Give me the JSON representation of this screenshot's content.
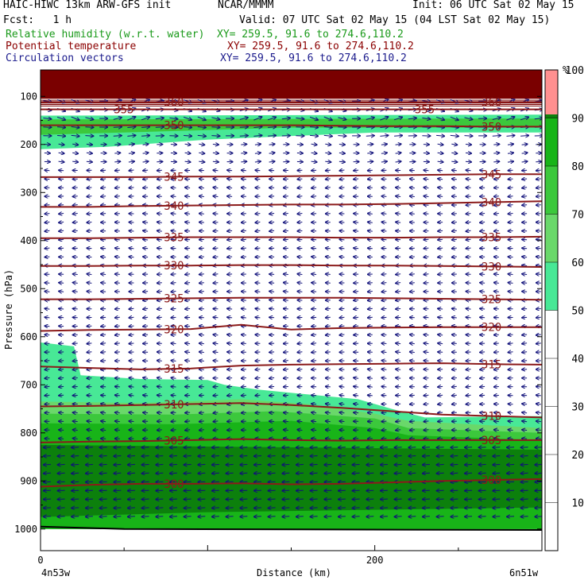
{
  "header": {
    "line1_left": "HAIC-HIWC 13km ARW-GFS init",
    "line1_mid": "NCAR/MMMM",
    "line1_right": "Init: 06 UTC Sat 02 May 15",
    "fcst": "Fcst:   1 h",
    "valid": "Valid: 07 UTC Sat 02 May 15 (04 LST Sat 02 May 15)",
    "rh_label": "Relative humidity (w.r.t. water)",
    "rh_xy": "XY= 259.5, 91.6 to 274.6,110.2",
    "theta_label": "Potential temperature",
    "theta_xy": "XY= 259.5, 91.6 to 274.6,110.2",
    "vec_label": "Circulation vectors",
    "vec_xy": "XY= 259.5, 91.6 to 274.6,110.2"
  },
  "colors": {
    "rh_text": "#1a9a1a",
    "theta_text": "#8b0000",
    "vec_text": "#1a1a8c",
    "theta_line": "#8b1a1a",
    "vector": "#10107a",
    "rh50": "#48e896",
    "rh60": "#6ad86a",
    "rh70": "#3cc83c",
    "rh80": "#18b418",
    "rh90": "#0c800c",
    "rh100": "#ff9090",
    "top_band": "#7a0000"
  },
  "chart_data": {
    "type": "cross-section",
    "xlabel": "Distance (km)",
    "ylabel": "Pressure (hPa)",
    "x_ticks": [
      "0",
      "200"
    ],
    "x_range": [
      0,
      300
    ],
    "y_ticks": [
      100,
      200,
      300,
      400,
      500,
      600,
      700,
      800,
      900,
      1000
    ],
    "y_range": [
      1045,
      45
    ],
    "endpoint_left": "4n53w",
    "endpoint_right": "6n51w",
    "colorbar": {
      "unit": "%",
      "labels": [
        "10",
        "20",
        "30",
        "40",
        "50",
        "60",
        "70",
        "80",
        "90",
        "100"
      ]
    },
    "isentropes": [
      {
        "theta": "300",
        "label_positions": [
          80,
          270
        ],
        "pressure": [
          912,
          908,
          906,
          906,
          905,
          907,
          906,
          903,
          900,
          898,
          896
        ]
      },
      {
        "theta": "305",
        "label_positions": [
          80,
          270
        ],
        "pressure": [
          820,
          818,
          817,
          815,
          813,
          815,
          816,
          815,
          815,
          815,
          815
        ]
      },
      {
        "theta": "310",
        "label_positions": [
          80,
          270
        ],
        "pressure": [
          745,
          744,
          742,
          740,
          738,
          742,
          748,
          755,
          762,
          765,
          768
        ]
      },
      {
        "theta": "315",
        "label_positions": [
          80,
          270
        ],
        "pressure": [
          662,
          665,
          668,
          666,
          660,
          658,
          657,
          656,
          655,
          657,
          658
        ]
      },
      {
        "theta": "320",
        "label_positions": [
          80,
          270
        ],
        "pressure": [
          588,
          586,
          585,
          584,
          575,
          585,
          582,
          581,
          580,
          580,
          580
        ]
      },
      {
        "theta": "325",
        "label_positions": [
          80,
          270
        ],
        "pressure": [
          522,
          522,
          521,
          520,
          519,
          519,
          519,
          520,
          521,
          522,
          523
        ]
      },
      {
        "theta": "330",
        "label_positions": [
          80,
          270
        ],
        "pressure": [
          453,
          453,
          452,
          452,
          451,
          451,
          452,
          452,
          453,
          454,
          455
        ]
      },
      {
        "theta": "335",
        "label_positions": [
          80,
          270
        ],
        "pressure": [
          395,
          395,
          394,
          393,
          393,
          393,
          394,
          394,
          393,
          393,
          392
        ]
      },
      {
        "theta": "340",
        "label_positions": [
          80,
          270
        ],
        "pressure": [
          330,
          330,
          328,
          327,
          326,
          325,
          325,
          324,
          322,
          320,
          318
        ]
      },
      {
        "theta": "345",
        "label_positions": [
          80,
          270
        ],
        "pressure": [
          268,
          268,
          268,
          267,
          267,
          266,
          265,
          264,
          263,
          262,
          262
        ]
      },
      {
        "theta": "350",
        "label_positions": [
          80,
          270
        ],
        "pressure": [
          160,
          160,
          160,
          160,
          160,
          160,
          161,
          162,
          162,
          163,
          163
        ]
      },
      {
        "theta": "355",
        "label_positions": [
          50,
          230
        ],
        "pressure": [
          127,
          127,
          127,
          127,
          127,
          127,
          127,
          127,
          127,
          127,
          127
        ]
      },
      {
        "theta": "360",
        "label_positions": [
          80,
          270
        ],
        "pressure": [
          112,
          112,
          112,
          112,
          112,
          112,
          112,
          112,
          112,
          112,
          112
        ]
      }
    ],
    "rh_regions": [
      {
        "level": 50,
        "points": [
          [
            0,
            612
          ],
          [
            20,
            620
          ],
          [
            24,
            680
          ],
          [
            60,
            688
          ],
          [
            100,
            690
          ],
          [
            110,
            700
          ],
          [
            130,
            710
          ],
          [
            190,
            730
          ],
          [
            210,
            750
          ],
          [
            230,
            768
          ],
          [
            300,
            765
          ],
          [
            300,
            1000
          ],
          [
            0,
            1000
          ]
        ]
      },
      {
        "level": 60,
        "points": [
          [
            0,
            735
          ],
          [
            60,
            738
          ],
          [
            120,
            730
          ],
          [
            160,
            740
          ],
          [
            200,
            760
          ],
          [
            220,
            775
          ],
          [
            300,
            790
          ],
          [
            300,
            1000
          ],
          [
            0,
            1000
          ]
        ]
      },
      {
        "level": 70,
        "points": [
          [
            0,
            760
          ],
          [
            80,
            762
          ],
          [
            140,
            755
          ],
          [
            200,
            770
          ],
          [
            220,
            790
          ],
          [
            300,
            800
          ],
          [
            300,
            1000
          ],
          [
            0,
            1000
          ]
        ]
      },
      {
        "level": 80,
        "points": [
          [
            0,
            780
          ],
          [
            80,
            782
          ],
          [
            150,
            775
          ],
          [
            200,
            790
          ],
          [
            220,
            805
          ],
          [
            300,
            815
          ],
          [
            300,
            1000
          ],
          [
            0,
            1000
          ]
        ]
      },
      {
        "level": 90,
        "points": [
          [
            0,
            825
          ],
          [
            300,
            835
          ],
          [
            300,
            955
          ],
          [
            200,
            960
          ],
          [
            100,
            965
          ],
          [
            50,
            970
          ],
          [
            0,
            975
          ]
        ]
      },
      {
        "level": 50,
        "points": [
          [
            0,
            140
          ],
          [
            300,
            138
          ],
          [
            300,
            175
          ],
          [
            200,
            175
          ],
          [
            100,
            190
          ],
          [
            40,
            205
          ],
          [
            0,
            210
          ]
        ]
      },
      {
        "level": 70,
        "points": [
          [
            0,
            148
          ],
          [
            300,
            146
          ],
          [
            300,
            165
          ],
          [
            150,
            165
          ],
          [
            50,
            175
          ],
          [
            0,
            180
          ]
        ]
      }
    ],
    "vectors": {
      "lower_direction": "west",
      "upper_direction": "east",
      "reversal_pressure": 240
    }
  }
}
